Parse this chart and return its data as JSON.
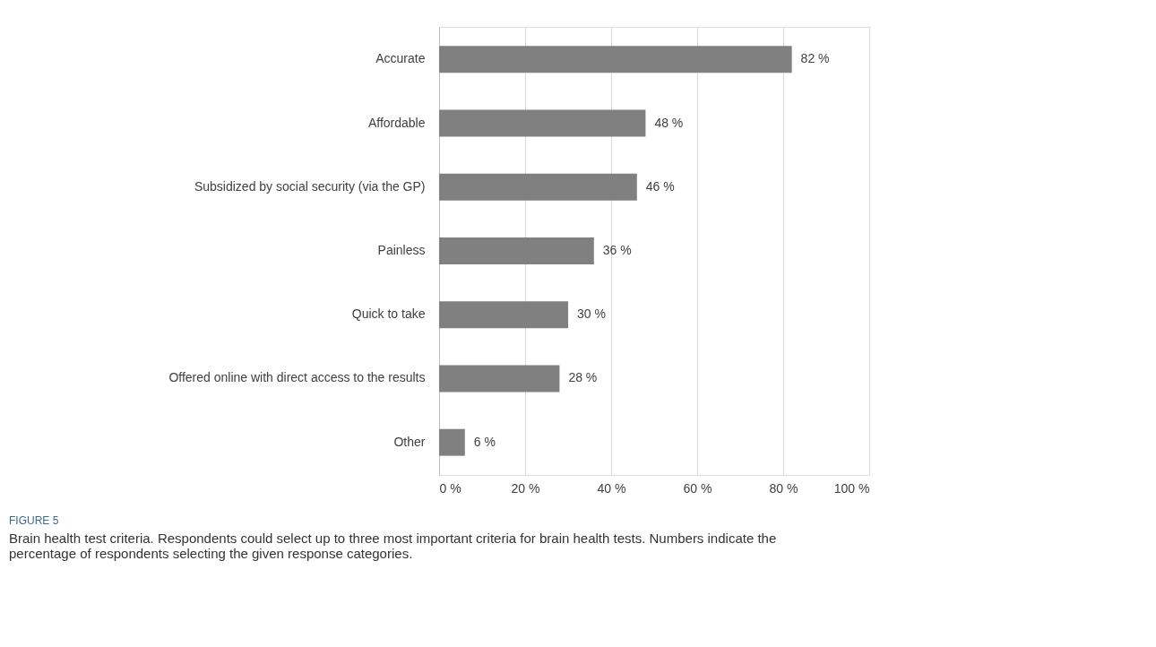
{
  "chart_data": {
    "type": "bar",
    "orientation": "horizontal",
    "categories": [
      "Accurate",
      "Affordable",
      "Subsidized by social security (via the GP)",
      "Painless",
      "Quick to take",
      "Offered online with direct access to the results",
      "Other"
    ],
    "values": [
      82,
      48,
      46,
      36,
      30,
      28,
      6
    ],
    "value_labels": [
      "82 %",
      "48 %",
      "46 %",
      "36 %",
      "30 %",
      "28 %",
      "6 %"
    ],
    "color": "#808080",
    "xlim": [
      0,
      100
    ],
    "xticks": [
      {
        "value": 0,
        "label": "0 %"
      },
      {
        "value": 20,
        "label": "20 %"
      },
      {
        "value": 40,
        "label": "40 %"
      },
      {
        "value": 60,
        "label": "60 %"
      },
      {
        "value": 80,
        "label": "80 %"
      },
      {
        "value": 100,
        "label": "100 %"
      }
    ],
    "grid": "x",
    "annotations": [
      "FIGURE 5",
      "Brain health test criteria. Respondents could select up to three most important criteria for brain health tests. Numbers indicate the percentage of respondents selecting the given response categories."
    ]
  }
}
